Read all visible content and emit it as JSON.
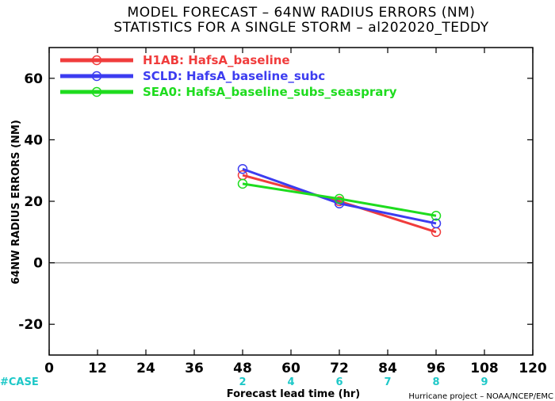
{
  "chart_data": {
    "type": "line",
    "title": "MODEL FORECAST – 64NW RADIUS ERRORS (NM)",
    "subtitle": "STATISTICS FOR A SINGLE STORM – al202020_TEDDY",
    "xlabel": "Forecast lead time (hr)",
    "ylabel": "64NW RADIUS ERRORS (NM)",
    "xlim": [
      0,
      120
    ],
    "ylim": [
      -30,
      70
    ],
    "x_ticks": [
      0,
      12,
      24,
      36,
      48,
      60,
      72,
      84,
      96,
      108,
      120
    ],
    "y_ticks": [
      -20,
      0,
      20,
      40,
      60
    ],
    "legend_position": "top-left",
    "series": [
      {
        "name": "H1AB: HafsA_baseline",
        "color": "#f03c3c",
        "x": [
          48,
          72,
          96
        ],
        "y": [
          28.5,
          20.0,
          10.0
        ]
      },
      {
        "name": "SCLD: HafsA_baseline_subc",
        "color": "#3c3cf0",
        "x": [
          48,
          72,
          96
        ],
        "y": [
          30.5,
          19.3,
          12.8
        ]
      },
      {
        "name": "SEA0: HafsA_baseline_subs_seasprary",
        "color": "#1edc1e",
        "x": [
          48,
          72,
          96
        ],
        "y": [
          25.7,
          20.8,
          15.3
        ]
      }
    ],
    "case_label": "#CASE",
    "case_counts": [
      {
        "x": 48,
        "count": "2"
      },
      {
        "x": 60,
        "count": "4"
      },
      {
        "x": 72,
        "count": "6"
      },
      {
        "x": 84,
        "count": "7"
      },
      {
        "x": 96,
        "count": "8"
      },
      {
        "x": 108,
        "count": "9"
      }
    ],
    "zero_line": true,
    "grid": false
  },
  "footer": {
    "credit": "Hurricane project – NOAA/NCEP/EMC"
  },
  "colors": {
    "case": "#1ec8c8",
    "zero_line": "#999999"
  }
}
